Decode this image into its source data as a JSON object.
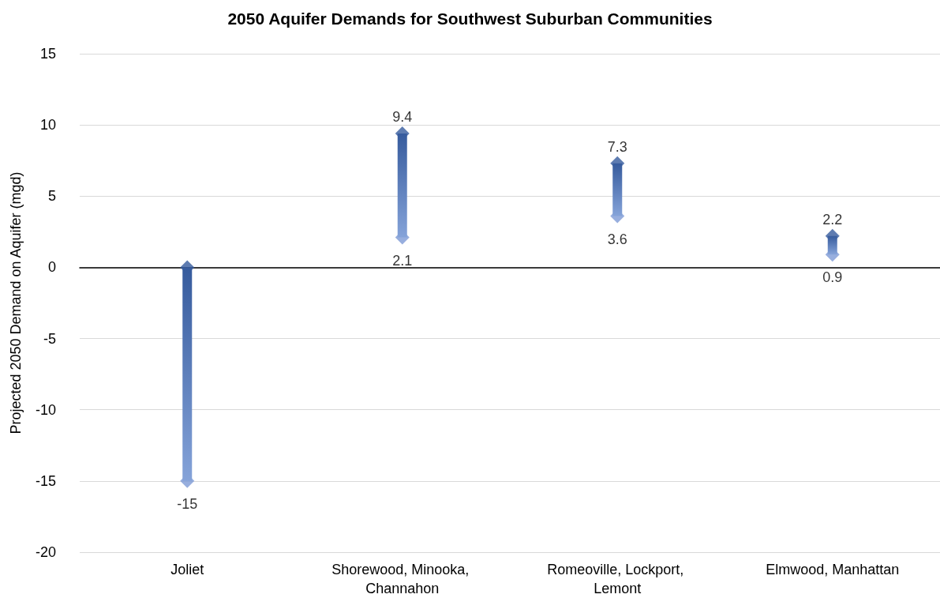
{
  "chart_data": {
    "type": "bar",
    "title": "2050 Aquifer Demands for Southwest Suburban Communities",
    "ylabel": "Projected 2050 Demand on Aquifer (mgd)",
    "categories": [
      "Joliet",
      "Shorewood, Minooka, Channahon",
      "Romeoville, Lockport, Lemont",
      "Elmwood, Manhattan"
    ],
    "series": [
      {
        "color": "#4472c4",
        "base": [
          -15,
          2.1,
          3.6,
          0.9
        ],
        "values": [
          15,
          7.3,
          3.7,
          1.3
        ]
      },
      {
        "type": "scatter",
        "color": "#365b9d",
        "values": [
          0,
          9.4,
          7.3,
          2.2
        ]
      },
      {
        "type": "scatter",
        "color": "#7d9ad6",
        "values": [
          -15,
          2.1,
          3.6,
          0.9
        ]
      }
    ],
    "marker": "diamond",
    "ylim": [
      -20,
      15
    ],
    "yticks": [
      -20,
      -15,
      -10,
      -5,
      0,
      5,
      10,
      15
    ],
    "grid": "y",
    "annotations": [
      {
        "text": "-15",
        "x": "Joliet",
        "y": -15
      },
      {
        "text": "9.4",
        "x": "Shorewood, Minooka, Channahon",
        "y": 9.4
      },
      {
        "text": "2.1",
        "x": "Shorewood, Minooka, Channahon",
        "y": 2.1
      },
      {
        "text": "7.3",
        "x": "Romeoville, Lockport, Lemont",
        "y": 7.3
      },
      {
        "text": "3.6",
        "x": "Romeoville, Lockport, Lemont",
        "y": 3.6
      },
      {
        "text": "2.2",
        "x": "Elmwood, Manhattan",
        "y": 2.2
      },
      {
        "text": "0.9",
        "x": "Elmwood, Manhattan",
        "y": 0.9
      }
    ]
  }
}
